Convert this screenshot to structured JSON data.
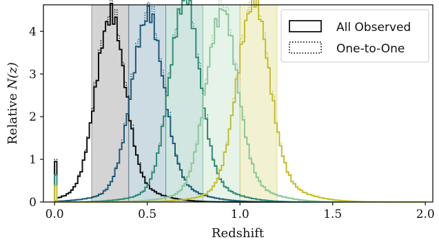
{
  "chart_data": {
    "type": "line",
    "title": "",
    "xlabel": "Redshift",
    "ylabel_prefix": "Relative ",
    "ylabel_math": "N(z)",
    "xlim": [
      -0.06,
      2.04
    ],
    "ylim": [
      0,
      4.62
    ],
    "xticks": [
      0.0,
      0.5,
      1.0,
      1.5,
      2.0
    ],
    "xtick_labels": [
      "0.0",
      "0.5",
      "1.0",
      "1.5",
      "2.0"
    ],
    "yticks": [
      0,
      1,
      2,
      3,
      4
    ],
    "ytick_labels": [
      "0",
      "1",
      "2",
      "3",
      "4"
    ],
    "grid": false,
    "legend_position": "top-right",
    "legend": [
      {
        "label": "All Observed",
        "style": "solid"
      },
      {
        "label": "One-to-One",
        "style": "dotted"
      }
    ],
    "bins": [
      {
        "range": [
          0.2,
          0.4
        ],
        "color": "#3a3a3a"
      },
      {
        "range": [
          0.4,
          0.6
        ],
        "color": "#1d5a7a"
      },
      {
        "range": [
          0.6,
          0.8
        ],
        "color": "#2e8b74"
      },
      {
        "range": [
          0.8,
          1.0
        ],
        "color": "#8dc79a"
      },
      {
        "range": [
          1.0,
          1.2
        ],
        "color": "#c4be2c"
      }
    ],
    "series": [
      {
        "color": "#111111",
        "mu": 0.3,
        "sigma": 0.078,
        "peak": 4.0,
        "spike": 0.95
      },
      {
        "color": "#1d5a7a",
        "mu": 0.5,
        "sigma": 0.085,
        "peak": 4.0,
        "spike": 0.0
      },
      {
        "color": "#2e8b74",
        "mu": 0.7,
        "sigma": 0.08,
        "peak": 4.35,
        "spike": 0.62
      },
      {
        "color": "#8dc79a",
        "mu": 0.9,
        "sigma": 0.083,
        "peak": 4.1,
        "spike": 0.0
      },
      {
        "color": "#c4be2c",
        "mu": 1.07,
        "sigma": 0.085,
        "peak": 4.3,
        "spike": 0.4
      }
    ]
  }
}
